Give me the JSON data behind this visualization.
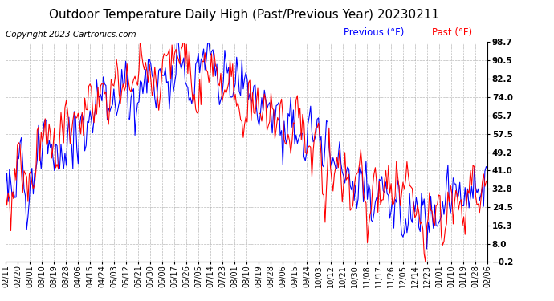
{
  "title": "Outdoor Temperature Daily High (Past/Previous Year) 20230211",
  "copyright": "Copyright 2023 Cartronics.com",
  "legend_previous": "Previous (°F)",
  "legend_past": "Past (°F)",
  "color_previous": "blue",
  "color_past": "red",
  "yticks": [
    -0.2,
    8.0,
    16.3,
    24.5,
    32.8,
    41.0,
    49.2,
    57.5,
    65.7,
    74.0,
    82.2,
    90.5,
    98.7
  ],
  "xtick_labels": [
    "02/11",
    "02/20",
    "03/01",
    "03/10",
    "03/19",
    "03/28",
    "04/06",
    "04/15",
    "04/24",
    "05/03",
    "05/12",
    "05/21",
    "05/30",
    "06/08",
    "06/17",
    "06/26",
    "07/05",
    "07/14",
    "07/23",
    "08/01",
    "08/10",
    "08/19",
    "08/28",
    "09/06",
    "09/15",
    "09/24",
    "10/03",
    "10/12",
    "10/21",
    "10/30",
    "11/08",
    "11/17",
    "11/26",
    "12/05",
    "12/14",
    "12/23",
    "01/01",
    "01/10",
    "01/19",
    "01/28",
    "02/06"
  ],
  "num_points": 366,
  "background_color": "#ffffff",
  "grid_color": "#aaaaaa",
  "title_fontsize": 11,
  "copyright_fontsize": 7.5,
  "legend_fontsize": 8.5,
  "tick_fontsize": 7,
  "linewidth": 0.8
}
